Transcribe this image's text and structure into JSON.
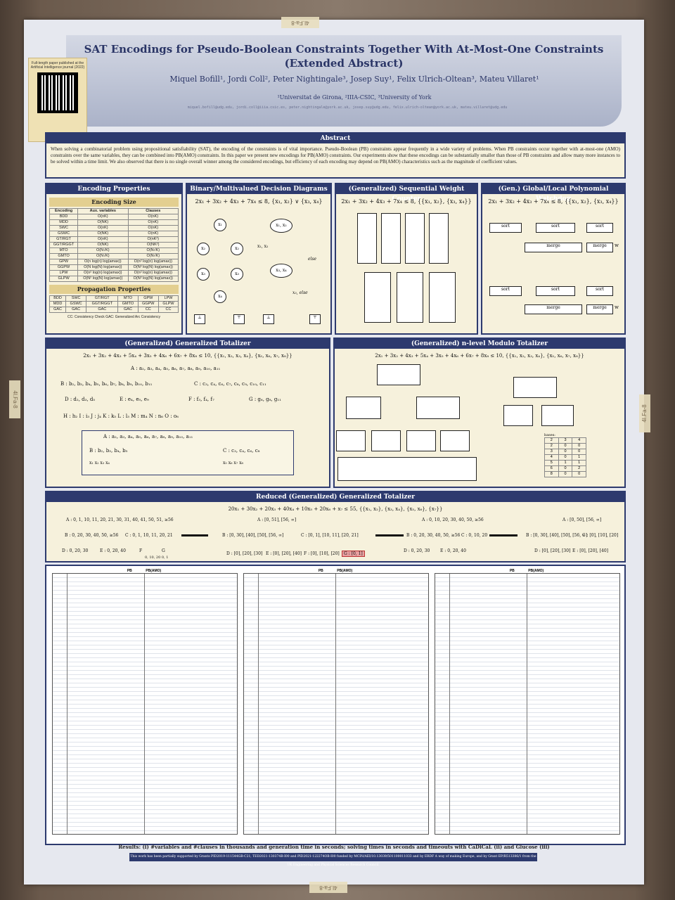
{
  "qr_note": "Full-length paper published at the Artificial Intelligence journal (2022)",
  "title_line1": "SAT Encodings for Pseudo-Boolean Constraints Together With At-Most-One Constraints",
  "title_line2": "(Extended Abstract)",
  "authors": "Miquel Bofill¹, Jordi Coll², Peter Nightingale³, Josep Suy¹, Felix Ulrich-Oltean³, Mateu Villaret¹",
  "affiliations": "¹Universitat de Girona, ²IIIA-CSIC, ³University of York",
  "emails": "miquel.bofill@udg.edu, jordi.coll@iiia.csic.es, peter.nightingale@york.ac.uk, josep.suy@udg.edu, felix.ulrich-oltean@york.ac.uk, mateu.villaret@udg.edu",
  "abstract": {
    "head": "Abstract",
    "text": "When solving a combinatorial problem using propositional satisfiability (SAT), the encoding of the constraints is of vital importance. Pseudo-Boolean (PB) constraints appear frequently in a wide variety of problems. When PB constraints occur together with at-most-one (AMO) constraints over the same variables, they can be combined into PB(AMO) constraints. In this paper we present new encodings for PB(AMO) constraints. Our experiments show that these encodings can be substantially smaller than those of PB constraints and allow many more instances to be solved within a time limit. We also observed that there is no single overall winner among the considered encodings, but efficiency of each encoding may depend on PB(AMO) characteristics such as the magnitude of coefficient values."
  },
  "encoding_properties": {
    "head": "Encoding Properties",
    "size_head": "Encoding Size",
    "cols": [
      "Encoding",
      "Aux. variables",
      "Clauses"
    ],
    "rows": [
      [
        "BDD",
        "O(nK)",
        "O(nK)"
      ],
      [
        "MDD",
        "O(NK)",
        "O(nK)"
      ],
      [
        "SWC",
        "O(nK)",
        "O(nK)"
      ],
      [
        "GSWC",
        "O(NK)",
        "O(nK)"
      ],
      [
        "GT/RGT",
        "O(nK)",
        "O(nK²)"
      ],
      [
        "GGT/RGGT",
        "O(NK)",
        "O(NK²)"
      ],
      [
        "MTO",
        "O(N√K)",
        "O(N√K)"
      ],
      [
        "GMTO",
        "O(N√K)",
        "O(N√K)"
      ],
      [
        "GPW",
        "O(n log(n) log(amax))",
        "O(n² log(n) log(amax))"
      ],
      [
        "GGPW",
        "O(N log(N) log(amax))",
        "O(N² log(N) log(amax))"
      ],
      [
        "LPW",
        "O(n² log(n) log(amax))",
        "O(n² log(n) log(amax))"
      ],
      [
        "GLPW",
        "O(N² log(N) log(amax))",
        "O(N² log(N) log(amax))"
      ]
    ],
    "prop_head": "Propagation Properties",
    "prop_rows": [
      [
        "BDD",
        "SWC",
        "GT/RGT",
        "MTO",
        "GPW",
        "LPW"
      ],
      [
        "MDD",
        "GSWC",
        "GGT/RGGT",
        "GMTO",
        "GGPW",
        "GLPW"
      ],
      [
        "GAC",
        "GAC",
        "GAC",
        "GAC",
        "CC",
        "CC"
      ]
    ],
    "prop_note": "CC: Consistency Check    GAC: Generalized Arc Consistency"
  },
  "bdd": {
    "head": "Binary/Multivalued Decision Diagrams",
    "formula": "2x₁ + 3x₂ + 4x₃ + 7x₄ ≤ 8, {x₁, x₂} ∨ {x₃, x₄}",
    "else1": "else",
    "else2": "x₃, else"
  },
  "swc": {
    "head": "(Generalized) Sequential Weight Counter",
    "formula": "2x₁ + 3x₂ + 4x₃ + 7x₄ ≤ 8, {{x₁, x₂}, {x₃, x₄}}"
  },
  "pw": {
    "head": "(Gen.) Global/Local Polynomial Watchdog",
    "formula": "2x₁ + 3x₂ + 4x₃ + 7x₄ ≤ 8, {{x₁, x₂}, {x₃, x₄}}",
    "sort": "sort",
    "merge": "merge",
    "w": "w"
  },
  "gt": {
    "head": "(Generalized) Generalized Totalizer",
    "formula": "2x₁ + 3x₂ + 4x₃ + 5x₄ + 3x₅ + 4x₆ + 6x₇ + 8x₈ ≤ 10, {{x₁, x₂, x₃, x₄}, {x₅, x₆, x₇, x₈}}",
    "A": "A : a₂, a₃, a₄, a₅, a₆, a₇, a₈, a₉, a₁₀, a₁₁",
    "B": "B : b₂, b₃, b₄, b₅, b₆, b₇, b₈, b₉, b₁₀, b₁₁",
    "C": "C : c₃, c₄, c₆, c₇, c₈, c₉, c₁₀, c₁₁",
    "D": "D : d₂, d₃, d₅",
    "E": "E : e₄, e₅, e₉",
    "F": "F : f₃, f₄, f₇",
    "G": "G : g₆, g₈, g₁₁",
    "leaves": "H : h₂   I : i₃   J : j₄   K : k₅   L : l₃   M : m₄   N : n₆   O : o₈",
    "A2": "A : a₂, a₃, a₄, a₅, a₆, a₇, a₈, a₉, a₁₀, a₁₁",
    "B2": "B : b₂, b₃, b₄, b₅",
    "C2": "C : c₃, c₄, c₆, c₈",
    "x_row1": "x₁ x₂ x₃ x₄",
    "x_row2": "x₅ x₆ x₇ x₈"
  },
  "mto": {
    "head": "(Generalized) n-level Modulo Totalizer",
    "formula": "2x₁ + 3x₂ + 4x₃ + 5x₄ + 3x₅ + 4x₆ + 6x₇ + 8x₈ ≤ 10, {{x₁, x₂, x₃, x₄}, {x₅, x₆, x₇, x₈}}",
    "bases_head": "bases:",
    "bases": [
      "2",
      "3",
      "4"
    ]
  },
  "rgt": {
    "head": "Reduced (Generalized) Generalized Totalizer",
    "formula": "20x₁ + 30x₂ + 20x₃ + 40x₄ + 10x₅ + 20x₆ + x₇ ≤ 55, {{x₁, x₂}, {x₃, x₄}, {x₅, x₆}, {x₇}}",
    "left_A": "A : 0, 1, 10, 11, 20, 21, 30, 31, 40, 41, 50, 51, ≥56",
    "left_B": "B : 0, 20, 30, 40, 50, ≥56",
    "left_C": "C : 0, 1, 10, 11, 20, 21",
    "left_D": "D : 0, 20, 30",
    "left_E": "E : 0, 20, 40",
    "left_F": "F",
    "left_G": "G",
    "left_FG": "0, 10, 20   0, 1",
    "mid_A": "A : [0, 51], [56, ∞]",
    "mid_B": "B : [0, 30], [40], [50], [56, ∞]",
    "mid_C": "C : [0, 1], [10, 11], [20, 21]",
    "mid_D": "D : [0], [20], [30]",
    "mid_E": "E : [0], [20], [40]",
    "mid_F": "F : [0], [10], [20]",
    "mid_G": "G : [0, 1]",
    "r1_A": "A : 0, 10, 20, 30, 40, 50, ≥56",
    "r1_B": "B : 0, 20, 30, 40, 50, ≥56",
    "r1_C": "C : 0, 10, 20",
    "r1_D": "D : 0, 20, 30",
    "r1_E": "E : 0, 20, 40",
    "r2_A": "A : [0, 50], [56, ∞]",
    "r2_B": "B : [0, 30], [40], [50], [56, ∞]",
    "r2_C": "C : [0], [10], [20]",
    "r2_D": "D : [0], [20], [30]",
    "r2_E": "E : [0], [20], [40]"
  },
  "results": {
    "col_titles": [
      "PB",
      "PB(AMO)"
    ],
    "caption": "Results: (i) #variables and #clauses in thousands and generation time in seconds; solving times in seconds and timeouts with CaDiCaL (ii) and Glucose (iii)"
  },
  "footer": "This work has been partially supported by Grants PID2019-111544GB-C21, TED2021-130374B-I00 and PID2021-122274OB-I00 funded by MCIN/AEI/10.13039/501100011033 and by ERDF A way of making Europe, and by Grant EP/R513386/1 from the UK Engineering and Physical Sciences Research Council.",
  "tape_labels": [
    "4I.Fa-8",
    "4I.Fa-8",
    "4I.Fa-8",
    "4I.Fa-8"
  ]
}
